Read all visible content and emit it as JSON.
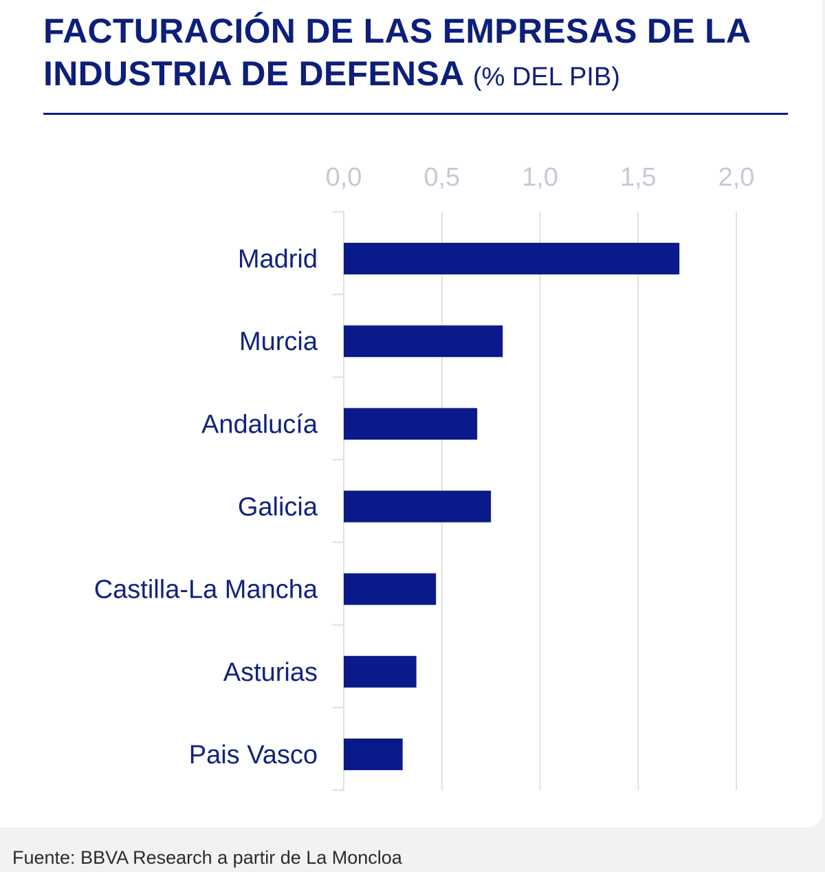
{
  "title": {
    "main": "FACTURACIÓN DE LAS EMPRESAS DE LA INDUSTRIA DE DEFENSA",
    "unit": "(% DEL PIB)"
  },
  "source": "Fuente: BBVA Research a partir de La Moncloa",
  "colors": {
    "bar": "#0a1a8a",
    "title": "#0d1f7a",
    "tick_label": "#c3cad6",
    "grid": "#dde1e7",
    "category_label": "#12237d"
  },
  "chart_data": {
    "type": "bar",
    "orientation": "horizontal",
    "title": "FACTURACIÓN DE LAS EMPRESAS DE LA INDUSTRIA DE DEFENSA (% DEL PIB)",
    "xlabel": "",
    "ylabel": "",
    "xlim": [
      0,
      2
    ],
    "ticks": [
      0,
      0.5,
      1,
      1.5,
      2
    ],
    "tick_labels": [
      "0,0",
      "0,5",
      "1,0",
      "1,5",
      "2,0"
    ],
    "grid": true,
    "categories": [
      "Madrid",
      "Murcia",
      "Andalucía",
      "Galicia",
      "Castilla-La Mancha",
      "Asturias",
      "Pais Vasco"
    ],
    "values": [
      1.71,
      0.81,
      0.68,
      0.75,
      0.47,
      0.37,
      0.3
    ]
  }
}
